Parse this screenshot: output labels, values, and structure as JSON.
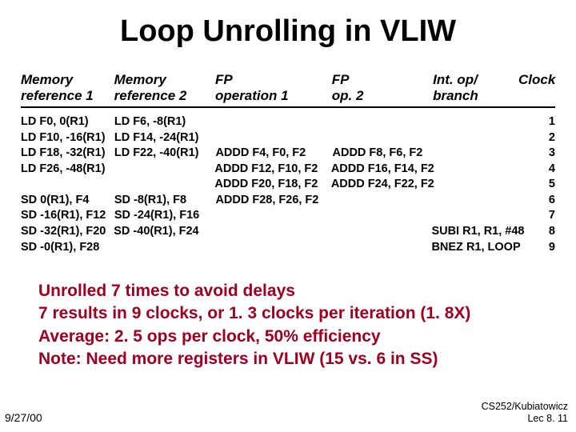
{
  "title": "Loop Unrolling in VLIW",
  "columns": {
    "c1a": "Memory",
    "c1b": "reference 1",
    "c2a": "Memory",
    "c2b": "reference 2",
    "c3a": "FP",
    "c3b": "operation 1",
    "c4a": "FP",
    "c4b": "op. 2",
    "c5a": "Int. op/",
    "c5b": "branch",
    "c6a": "Clock",
    "c6b": ""
  },
  "rows": [
    {
      "c1": "LD F0, 0(R1)",
      "c2": "LD F6, -8(R1)",
      "c3": "",
      "c4": "",
      "c5": "",
      "c6": "1"
    },
    {
      "c1": "LD F10, -16(R1)",
      "c2": "LD F14, -24(R1)",
      "c3": "",
      "c4": "",
      "c5": "",
      "c6": "2"
    },
    {
      "c1": "LD F18, -32(R1)",
      "c2": "LD F22, -40(R1)",
      "c3": "ADDD F4, F0, F2",
      "c4": "ADDD F8, F6, F2",
      "c5": "",
      "c6": "3"
    },
    {
      "c1": "LD F26, -48(R1)",
      "c2": "",
      "c3": "ADDD F12, F10, F2",
      "c4": "ADDD F16, F14, F2",
      "c5": "",
      "c6": "4"
    },
    {
      "c1": "",
      "c2": "",
      "c3": "ADDD F20, F18, F2",
      "c4": "ADDD F24, F22, F2",
      "c5": "",
      "c6": "5"
    },
    {
      "c1": "SD 0(R1), F4",
      "c2": "SD -8(R1), F8",
      "c3": "ADDD F28, F26, F2",
      "c4": "",
      "c5": "",
      "c6": "6"
    },
    {
      "c1": "SD -16(R1), F12",
      "c2": "SD -24(R1), F16",
      "c3": "",
      "c4": "",
      "c5": "",
      "c6": "7"
    },
    {
      "c1": "SD -32(R1), F20",
      "c2": "SD -40(R1), F24",
      "c3": "",
      "c4": "",
      "c5": "SUBI  R1, R1, #48",
      "c6": "8"
    },
    {
      "c1": "SD -0(R1), F28",
      "c2": "",
      "c3": "",
      "c4": "",
      "c5": "BNEZ R1, LOOP",
      "c6": "9"
    }
  ],
  "bullets": {
    "b1": "Unrolled 7 times to avoid delays",
    "b2": "7 results in 9 clocks, or 1. 3 clocks per iteration (1. 8X)",
    "b3": "Average: 2. 5 ops per clock, 50% efficiency",
    "b4": "Note: Need more registers in VLIW (15 vs. 6 in SS)"
  },
  "footer": {
    "date": "9/27/00",
    "right1": "CS252/Kubiatowicz",
    "right2": "Lec 8. 11"
  }
}
